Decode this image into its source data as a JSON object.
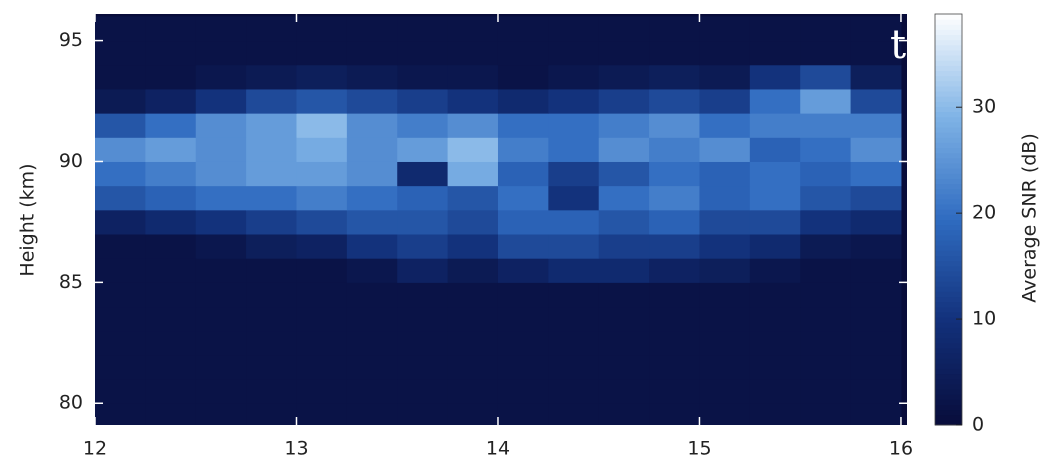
{
  "chart_data": {
    "type": "heatmap",
    "panel_label": "t",
    "xlim": [
      12,
      16.03
    ],
    "xticks": [
      12,
      13,
      14,
      15,
      16
    ],
    "ylim": [
      79.1,
      96.1
    ],
    "yticks": [
      80,
      85,
      90,
      95
    ],
    "y_label": "Height (km)",
    "x": [
      12.125,
      12.375,
      12.625,
      12.875,
      13.125,
      13.375,
      13.625,
      13.875,
      14.125,
      14.375,
      14.625,
      14.875,
      15.125,
      15.375,
      15.625,
      15.875
    ],
    "y": [
      79.5,
      80.5,
      81.5,
      82.5,
      83.5,
      84.5,
      85.5,
      86.5,
      87.5,
      88.5,
      89.5,
      90.5,
      91.5,
      92.5,
      93.5,
      94.5,
      95.5
    ],
    "z": [
      [
        2,
        2,
        2,
        2,
        2,
        2,
        2,
        2,
        2,
        2,
        2,
        2,
        2,
        2,
        2,
        2
      ],
      [
        2,
        2,
        2,
        2,
        2,
        2,
        2,
        2,
        2,
        2,
        2,
        2,
        2,
        2,
        2,
        2
      ],
      [
        2,
        2,
        2,
        2,
        2,
        2,
        2,
        2,
        2,
        2,
        2,
        2,
        2,
        2,
        2,
        2
      ],
      [
        2,
        2,
        2,
        2,
        2,
        2,
        2,
        2,
        2,
        2,
        2,
        2,
        2,
        2,
        2,
        2
      ],
      [
        2,
        2,
        2,
        2,
        2,
        2,
        2,
        2,
        2,
        2,
        2,
        2,
        2,
        2,
        2,
        2
      ],
      [
        2,
        2,
        2,
        2,
        2,
        2,
        2,
        2,
        2,
        2,
        2,
        2,
        2,
        2,
        2,
        2
      ],
      [
        2,
        2,
        2,
        2,
        2,
        3,
        6,
        4,
        6,
        8,
        8,
        6,
        5,
        3,
        2,
        2
      ],
      [
        2,
        2,
        3,
        5,
        6,
        10,
        12,
        10,
        14,
        14,
        12,
        12,
        10,
        8,
        4,
        3
      ],
      [
        6,
        8,
        10,
        12,
        14,
        16,
        16,
        14,
        18,
        18,
        16,
        18,
        14,
        14,
        10,
        8
      ],
      [
        16,
        18,
        20,
        20,
        22,
        20,
        18,
        16,
        20,
        10,
        20,
        22,
        18,
        20,
        16,
        14
      ],
      [
        20,
        22,
        24,
        26,
        26,
        24,
        8,
        28,
        18,
        12,
        16,
        20,
        18,
        20,
        18,
        20
      ],
      [
        24,
        26,
        24,
        26,
        28,
        24,
        26,
        30,
        22,
        20,
        24,
        22,
        24,
        18,
        20,
        24
      ],
      [
        16,
        20,
        24,
        26,
        30,
        24,
        22,
        24,
        20,
        20,
        22,
        24,
        20,
        22,
        22,
        22
      ],
      [
        4,
        6,
        10,
        14,
        16,
        14,
        12,
        10,
        8,
        10,
        12,
        14,
        12,
        20,
        26,
        14
      ],
      [
        2,
        2,
        3,
        4,
        5,
        4,
        3,
        3,
        2,
        3,
        4,
        5,
        4,
        10,
        14,
        5
      ],
      [
        2,
        2,
        2,
        2,
        2,
        2,
        2,
        2,
        2,
        2,
        2,
        2,
        2,
        2,
        2,
        2
      ],
      [
        2,
        2,
        2,
        2,
        2,
        2,
        2,
        2,
        2,
        2,
        2,
        2,
        2,
        2,
        2,
        2
      ]
    ],
    "colormap": [
      "#080c3a",
      "#12307a",
      "#2f6bc0",
      "#7fb3e6",
      "#ffffff"
    ],
    "clim": [
      0,
      38.8
    ],
    "cticks": [
      0,
      10,
      20,
      30
    ],
    "colorbar_label": "Average SNR (dB)"
  }
}
